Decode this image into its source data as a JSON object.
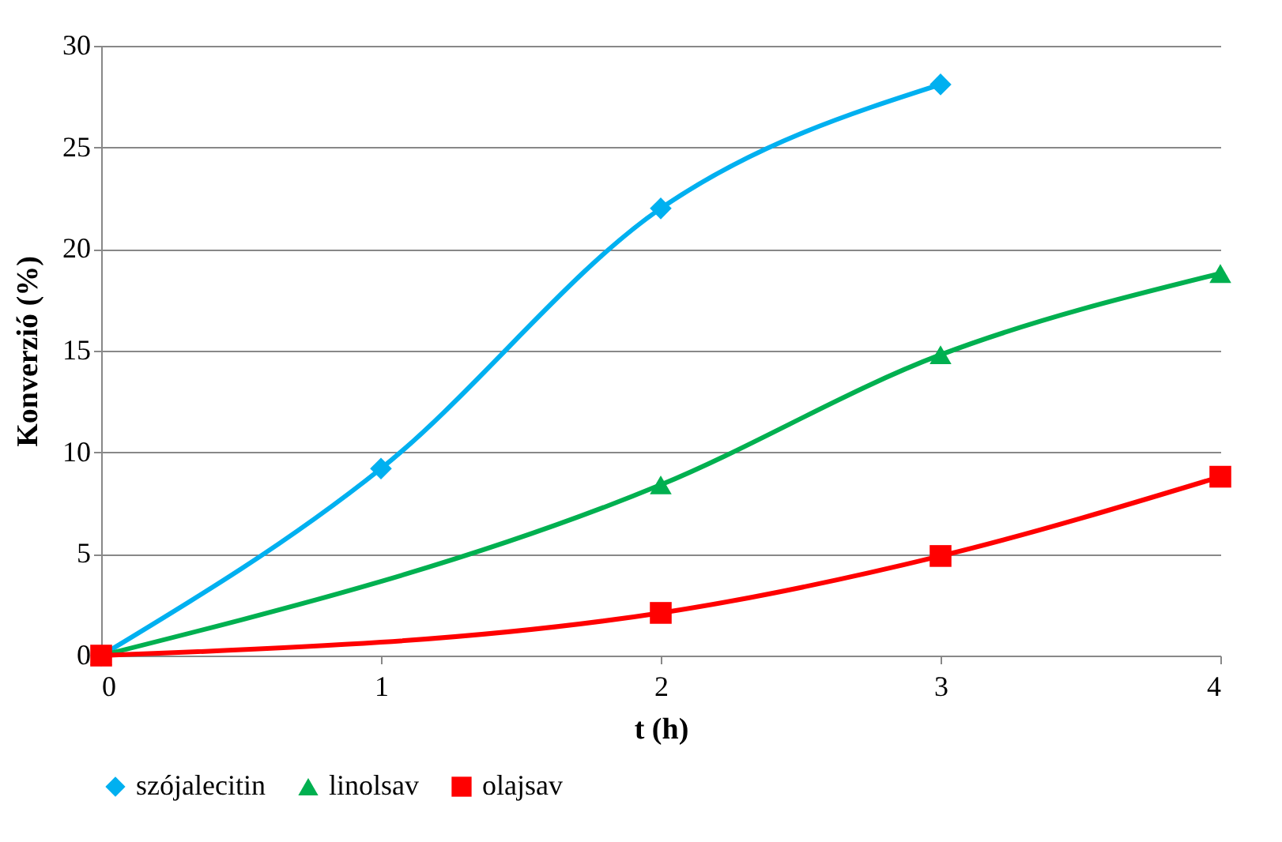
{
  "chart_data": {
    "type": "line",
    "xlabel": "t (h)",
    "ylabel": "Konverzió (%)",
    "xlim": [
      0,
      4
    ],
    "xticks": [
      0,
      1,
      2,
      3,
      4
    ],
    "ylim": [
      0,
      30
    ],
    "yticks": [
      0,
      5,
      10,
      15,
      20,
      25,
      30
    ],
    "grid": "y",
    "legend": "bottom",
    "series": [
      {
        "name": "szójalecitin",
        "color": "#00b0f0",
        "marker": "diamond",
        "x": [
          0,
          1,
          2,
          3
        ],
        "values": [
          0,
          9.2,
          22,
          28.1
        ]
      },
      {
        "name": "linolsav",
        "color": "#00b050",
        "marker": "triangle",
        "x": [
          0,
          2,
          3,
          4
        ],
        "values": [
          0,
          8.4,
          14.8,
          18.8
        ]
      },
      {
        "name": "olajsav",
        "color": "#ff0000",
        "marker": "square",
        "x": [
          0,
          2,
          3,
          4
        ],
        "values": [
          0,
          2.1,
          4.9,
          8.8
        ]
      }
    ]
  }
}
